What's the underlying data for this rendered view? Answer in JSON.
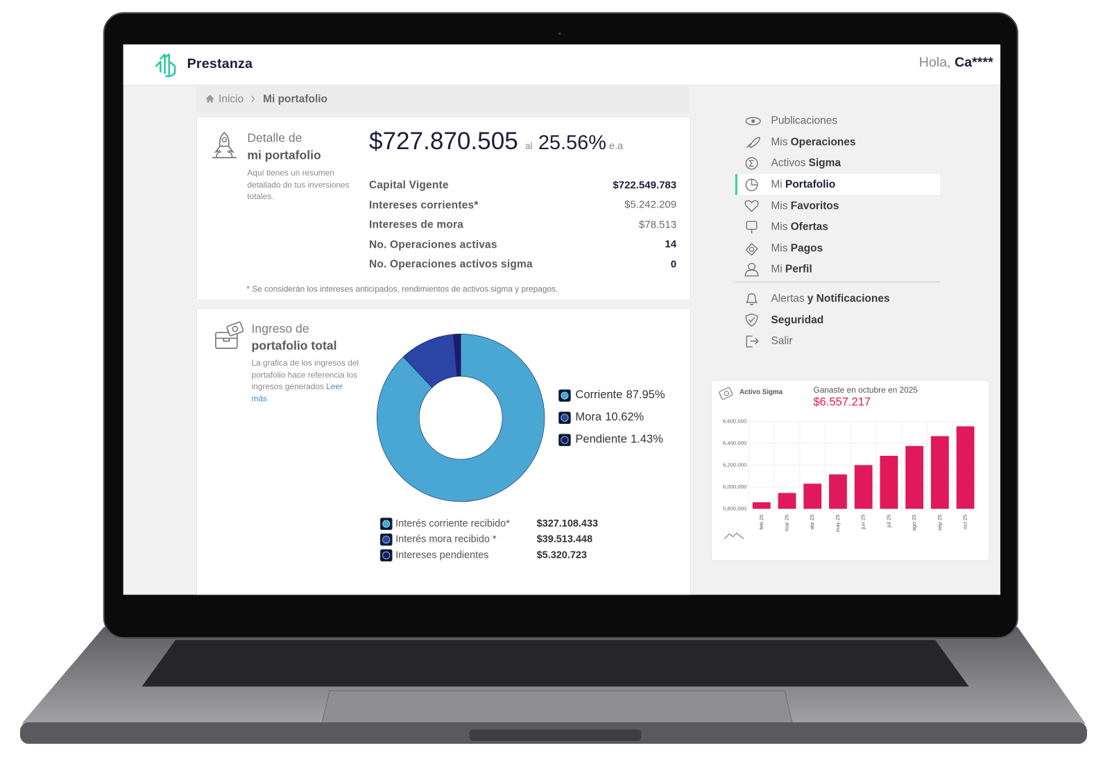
{
  "header": {
    "logo": "Prestanza",
    "greeting": "Hola,",
    "user": "Ca****"
  },
  "breadcrumb": [
    "Inicio",
    "Mi portafolio"
  ],
  "portfolio": {
    "title": [
      "Detalle de",
      "mi portafolio"
    ],
    "description": "Aquí tienes un resumen detallado de tus inversiones totales.",
    "total": "$727.870.505",
    "connector": "al",
    "rate": "25.56%",
    "rate_unit": "e.a",
    "rows": [
      [
        "Capital Vigente",
        "$722.549.783"
      ],
      [
        "Intereses corrientes*",
        "$5.242.209"
      ],
      [
        "Intereses de mora",
        "$78.513"
      ],
      [
        "No. Operaciones activas",
        "14"
      ],
      [
        "No. Operaciones activos sigma",
        "0"
      ]
    ],
    "footnote": "* Se considerán los intereses anticipados, rendimientos de activos sigma y prepagos."
  },
  "income": {
    "title": [
      "Ingreso de",
      "portafolio total"
    ],
    "description": "La grafica de los ingresos del portafolio hace referencia los ingresos generados",
    "link": "Leer más",
    "rows": [
      [
        "Interés corriente recibido*",
        "$327.108.433"
      ],
      [
        "Interés mora recibido *",
        "$39.513.448"
      ],
      [
        "Intereses pendientes",
        "$5.320.723"
      ]
    ]
  },
  "menu": [
    {
      "light": "Publicaciones"
    },
    {
      "light": "Mis",
      "bold": "Operaciones"
    },
    {
      "light": "Activos",
      "bold": "Sigma"
    },
    {
      "light": "Mi",
      "bold": "Portafolio"
    },
    {
      "light": "Mis",
      "bold": "Favoritos"
    },
    {
      "light": "Mis",
      "bold": "Ofertas"
    },
    {
      "light": "Mis",
      "bold": "Pagos"
    },
    {
      "light": "Mi",
      "bold": "Perfil"
    },
    {
      "light": "Alertas",
      "bold": "y Notificaciones"
    },
    {
      "bold": "Seguridad"
    },
    {
      "light": "Salir"
    }
  ],
  "sigma": {
    "label": "Activo Sigma",
    "caption": "Ganaste en octubre en 2025",
    "amount": "$6.557.217"
  },
  "chart_data": [
    {
      "type": "donut",
      "categories": [
        "Corriente",
        "Mora",
        "Pendiente"
      ],
      "values": [
        87.95,
        10.62,
        1.43
      ],
      "value_labels": [
        "87.95%",
        "10.62%",
        "1.43%"
      ],
      "colors": [
        "#4aa6d2",
        "#2b45a6",
        "#1c1a6e"
      ]
    },
    {
      "type": "bar",
      "categories": [
        "feb 25",
        "mar 25",
        "abr 25",
        "may 25",
        "jun 25",
        "jul 25",
        "ago 25",
        "sep 25",
        "oct 25"
      ],
      "values": [
        5860000,
        5945000,
        6030000,
        6115000,
        6200000,
        6285000,
        6375000,
        6465000,
        6555000
      ],
      "color": "#e0195a",
      "ylim": [
        5800000,
        6620000
      ],
      "yticks": [
        {
          "value": 5800000,
          "label": "5,800,000"
        },
        {
          "value": 6000000,
          "label": "6,000,000"
        },
        {
          "value": 6200000,
          "label": "6,200,000"
        },
        {
          "value": 6400000,
          "label": "6,400,000"
        },
        {
          "value": 6600000,
          "label": "6,600,000"
        }
      ],
      "grid": true
    }
  ]
}
